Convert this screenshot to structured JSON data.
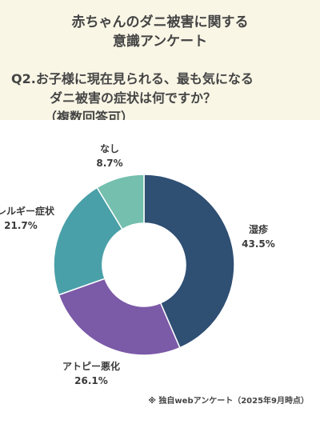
{
  "title": {
    "line1": "赤ちゃんのダニ被害に関する",
    "line2": "意識アンケート"
  },
  "question": {
    "line1": "Q2.お子様に現在見られる、最も気になる",
    "line2": "ダニ被害の症状は何ですか？",
    "line3": "（複数回答可）"
  },
  "chart_data": {
    "type": "pie",
    "donut": true,
    "unit": "%",
    "categories": [
      "湿疹",
      "アトピー悪化",
      "アレルギー症状",
      "なし"
    ],
    "values": [
      43.5,
      26.1,
      21.7,
      8.7
    ],
    "value_labels": [
      "43.5%",
      "26.1%",
      "21.7%",
      "8.7%"
    ],
    "colors": [
      "#2f4f73",
      "#7b5aa8",
      "#4aa0a8",
      "#74bfae"
    ]
  },
  "footnote": "※ 独自webアンケート（2025年9月時点）"
}
